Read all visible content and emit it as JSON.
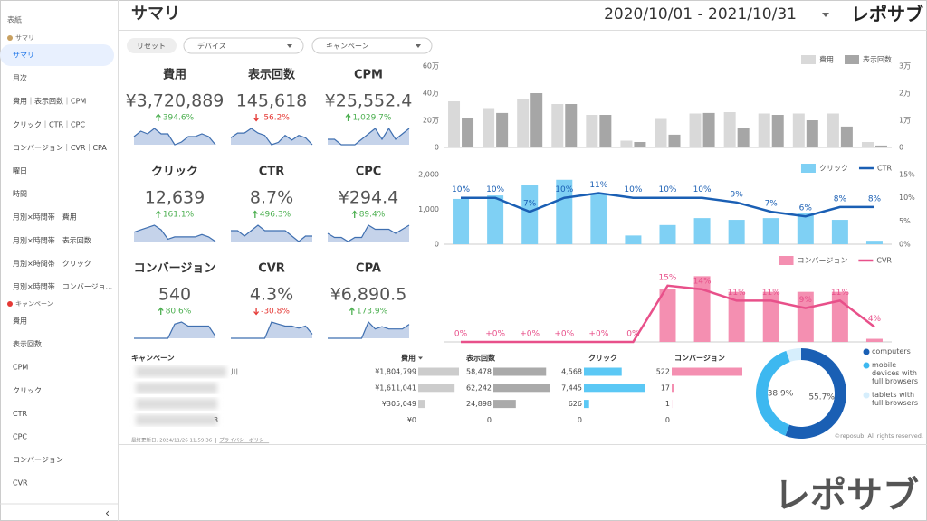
{
  "sidebar": {
    "cover": "表紙",
    "groups": [
      {
        "label": "サマリ",
        "selected_item": 0,
        "items": [
          "サマリ",
          "月次",
          "費用｜表示回数｜CPM",
          "クリック｜CTR｜CPC",
          "コンバージョン｜CVR｜CPA",
          "曜日",
          "時間",
          "月別×時間帯　費用",
          "月別×時間帯　表示回数",
          "月別×時間帯　クリック",
          "月別×時間帯　コンバージョ..."
        ]
      },
      {
        "label": "キャンペーン",
        "items": [
          "費用",
          "表示回数",
          "CPM",
          "クリック",
          "CTR",
          "CPC",
          "コンバージョン",
          "CVR"
        ]
      }
    ],
    "collapse": "‹"
  },
  "header": {
    "title": "サマリ",
    "date_range": "2020/10/01 - 2021/10/31",
    "logo": "レポサブ"
  },
  "filters": {
    "reset": "リセット",
    "dropdowns": [
      "デバイス",
      "キャンペーン"
    ]
  },
  "kpis": [
    {
      "label": "費用",
      "value": "¥3,720,889",
      "change": "394.6%",
      "trend": "up",
      "sparkline": [
        5,
        7,
        6,
        8,
        6,
        6,
        2,
        3,
        5,
        5,
        6,
        5,
        2
      ]
    },
    {
      "label": "表示回数",
      "value": "145,618",
      "change": "-56.2%",
      "trend": "down",
      "sparkline": [
        4,
        6,
        6,
        8,
        6,
        5,
        1,
        2,
        5,
        3,
        5,
        4,
        1
      ]
    },
    {
      "label": "CPM",
      "value": "¥25,552.4",
      "change": "1,029.7%",
      "trend": "up",
      "sparkline": [
        5,
        5,
        4,
        4,
        4,
        5,
        6,
        7,
        5,
        7,
        5,
        6,
        7
      ]
    },
    {
      "label": "クリック",
      "value": "12,639",
      "change": "161.1%",
      "trend": "up",
      "sparkline": [
        5,
        6,
        7,
        8,
        6,
        2,
        3,
        3,
        3,
        3,
        4,
        3,
        1
      ]
    },
    {
      "label": "CTR",
      "value": "8.7%",
      "change": "496.3%",
      "trend": "up",
      "sparkline": [
        6,
        6,
        5,
        6,
        7,
        6,
        6,
        6,
        6,
        5,
        4,
        5,
        5
      ]
    },
    {
      "label": "CPC",
      "value": "¥294.4",
      "change": "89.4%",
      "trend": "up",
      "sparkline": [
        4,
        3,
        3,
        2,
        3,
        3,
        6,
        5,
        5,
        5,
        4,
        5,
        6
      ]
    },
    {
      "label": "コンバージョン",
      "value": "540",
      "change": "80.6%",
      "trend": "up",
      "sparkline": [
        0,
        0,
        0,
        0,
        0,
        0,
        7,
        8,
        6,
        6,
        6,
        6,
        1
      ]
    },
    {
      "label": "CVR",
      "value": "4.3%",
      "change": "-30.8%",
      "trend": "down",
      "sparkline": [
        0,
        0,
        0,
        0,
        0,
        0,
        8,
        7,
        6,
        6,
        5,
        6,
        2
      ]
    },
    {
      "label": "CPA",
      "value": "¥6,890.5",
      "change": "173.9%",
      "trend": "up",
      "sparkline": [
        0,
        0,
        0,
        0,
        0,
        0,
        7,
        4,
        5,
        4,
        4,
        4,
        6
      ]
    }
  ],
  "chart_data": [
    {
      "type": "combo",
      "legend": "top-right",
      "series": [
        {
          "name": "費用",
          "type": "bar",
          "color": "#d9d9d9",
          "values": [
            340000,
            290000,
            360000,
            320000,
            240000,
            50000,
            210000,
            250000,
            260000,
            250000,
            250000,
            250000,
            40000
          ]
        },
        {
          "name": "表示回数",
          "type": "bar",
          "color": "#a6a6a6",
          "axis": "y2",
          "values": [
            10700,
            12700,
            20000,
            16000,
            12000,
            2000,
            4700,
            12700,
            7000,
            12000,
            10000,
            7700,
            700
          ]
        }
      ],
      "ylim": [
        0,
        600000
      ],
      "yticks": [
        0,
        {
          "value": 200000,
          "label": "20万"
        },
        {
          "value": 400000,
          "label": "40万"
        },
        {
          "value": 600000,
          "label": "60万"
        }
      ],
      "y2lim": [
        0,
        30000
      ],
      "y2ticks": [
        0,
        {
          "value": 10000,
          "label": "1万"
        },
        {
          "value": 20000,
          "label": "2万"
        },
        {
          "value": 30000,
          "label": "3万"
        }
      ]
    },
    {
      "type": "combo",
      "legend": "top-right",
      "series": [
        {
          "name": "クリック",
          "type": "bar",
          "color": "#7fd0f4",
          "values": [
            1300,
            1400,
            1700,
            1850,
            1450,
            250,
            550,
            750,
            700,
            750,
            900,
            700,
            100
          ]
        },
        {
          "name": "CTR",
          "type": "line",
          "color": "#1a5fb4",
          "axis": "y2",
          "values": [
            10,
            10,
            7,
            10,
            11,
            10,
            10,
            10,
            9,
            7,
            6,
            8,
            8
          ],
          "value_labels": [
            "10%",
            "10%",
            "7%",
            "10%",
            "11%",
            "10%",
            "10%",
            "10%",
            "9%",
            "7%",
            "6%",
            "8%",
            "8%"
          ]
        }
      ],
      "ylim": [
        0,
        2000
      ],
      "yticks": [
        0,
        {
          "value": 1000,
          "label": "1,000"
        },
        {
          "value": 2000,
          "label": "2,000"
        }
      ],
      "y2lim": [
        0,
        15
      ],
      "y2ticks": [
        {
          "value": 0,
          "label": "0%"
        },
        {
          "value": 5,
          "label": "5%"
        },
        {
          "value": 10,
          "label": "10%"
        },
        {
          "value": 15,
          "label": "15%"
        }
      ]
    },
    {
      "type": "combo",
      "legend": "top-right",
      "series": [
        {
          "name": "コンバージョン",
          "type": "bar",
          "color": "#f48fb1",
          "values": [
            0,
            0,
            0,
            0,
            0,
            0,
            85,
            105,
            80,
            80,
            80,
            80,
            5
          ]
        },
        {
          "name": "CVR",
          "type": "line",
          "color": "#e8508a",
          "axis": "y2",
          "values": [
            0,
            0,
            0,
            0,
            0,
            0,
            15,
            14,
            11,
            11,
            9,
            11,
            4
          ],
          "value_labels": [
            "0%",
            "+0%",
            "+0%",
            "+0%",
            "+0%",
            "0%",
            "15%",
            "14%",
            "11%",
            "11%",
            "9%",
            "11%",
            "4%"
          ]
        }
      ],
      "ylim": [
        0,
        120
      ],
      "y2lim": [
        0,
        20
      ]
    },
    {
      "type": "donut",
      "categories": [
        "computers",
        "mobile devices with full browsers",
        "tablets with full browsers"
      ],
      "values": [
        55.7,
        38.9,
        5.4
      ],
      "value_labels": [
        "55.7%",
        "38.9%",
        null
      ],
      "colors": [
        "#1a5fb4",
        "#3db8f0",
        "#d6eefc"
      ]
    }
  ],
  "table": {
    "headers": [
      "キャンペーン",
      "費用",
      "表示回数",
      "クリック",
      "コンバージョン"
    ],
    "sorted_column": 1,
    "bar_colors": [
      null,
      "#cccccc",
      "#aaaaaa",
      "#5bc8f5",
      "#f48fb1"
    ],
    "rows": [
      {
        "name": "川",
        "cells": [
          "¥1,804,799",
          "58,478",
          "4,568",
          "522"
        ]
      },
      {
        "cells": [
          "¥1,611,041",
          "62,242",
          "7,445",
          "17"
        ]
      },
      {
        "cells": [
          "¥305,049",
          "24,898",
          "626",
          "1"
        ]
      },
      {
        "name": "3",
        "cells": [
          "¥0",
          "0",
          "0",
          "0"
        ]
      }
    ]
  },
  "footer": {
    "updated": "最終更新日: 2024/11/26 11:59:36",
    "privacy": "プライバシーポリシー",
    "copyright": "©reposub. All rights reserved."
  },
  "watermark": "レポサブ"
}
